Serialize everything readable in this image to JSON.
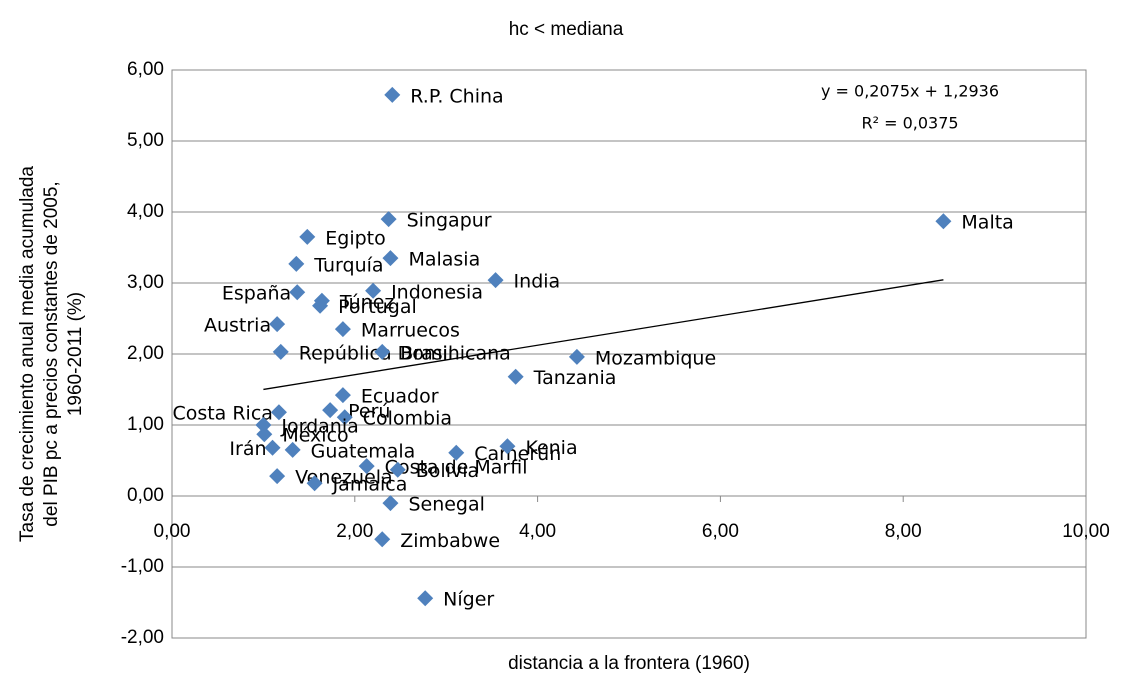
{
  "chart_data": {
    "type": "scatter",
    "title": "hc < mediana",
    "x_label": "distancia a la frontera (1960)",
    "y_label": [
      "Tasa de crecimiento anual media acumulada",
      "del PIB pc a precios constantes de 2005,",
      "1960-2011 (%)"
    ],
    "xlim": [
      0,
      10
    ],
    "ylim": [
      -2,
      6
    ],
    "xticks": [
      {
        "value": 0,
        "label": "0,00"
      },
      {
        "value": 2,
        "label": "2,00"
      },
      {
        "value": 4,
        "label": "4,00"
      },
      {
        "value": 6,
        "label": "6,00"
      },
      {
        "value": 8,
        "label": "8,00"
      },
      {
        "value": 10,
        "label": "10,00"
      }
    ],
    "yticks": [
      {
        "value": -2,
        "label": "-2,00"
      },
      {
        "value": -1,
        "label": "-1,00"
      },
      {
        "value": 0,
        "label": "0,00"
      },
      {
        "value": 1,
        "label": "1,00"
      },
      {
        "value": 2,
        "label": "2,00"
      },
      {
        "value": 3,
        "label": "3,00"
      },
      {
        "value": 4,
        "label": "4,00"
      },
      {
        "value": 5,
        "label": "5,00"
      },
      {
        "value": 6,
        "label": "6,00"
      }
    ],
    "grid": true,
    "color": "#4f81bd",
    "labels": [
      "R.P. China",
      "Singapur",
      "Malta",
      "Egipto",
      "Malasia",
      "Turquía",
      "India",
      "España",
      "Indonesia",
      "Túnez",
      "Portugal",
      "Austria",
      "Marruecos",
      "República Dominicana",
      "Brasil",
      "Mozambique",
      "Tanzania",
      "Ecuador",
      "Costa Rica",
      "Perú",
      "Colombia",
      "Jordania",
      "México",
      "Irán",
      "Guatemala",
      "Costa de Marfil",
      "Bolivia",
      "Camerún",
      "Kenia",
      "Venezuela",
      "Jamaica",
      "Senegal",
      "Zimbabwe",
      "Níger"
    ],
    "x": [
      2.41,
      2.37,
      8.44,
      1.48,
      2.39,
      1.36,
      3.54,
      1.37,
      2.2,
      1.64,
      1.62,
      1.15,
      1.87,
      1.19,
      2.3,
      4.43,
      3.76,
      1.87,
      1.17,
      1.73,
      1.89,
      1.0,
      1.01,
      1.1,
      1.32,
      2.13,
      2.47,
      3.11,
      3.67,
      1.15,
      1.56,
      2.39,
      2.3,
      2.77
    ],
    "values": [
      5.65,
      3.9,
      3.87,
      3.65,
      3.35,
      3.27,
      3.04,
      2.87,
      2.89,
      2.75,
      2.68,
      2.42,
      2.35,
      2.03,
      2.03,
      1.96,
      1.68,
      1.42,
      1.18,
      1.21,
      1.11,
      1.0,
      0.87,
      0.68,
      0.65,
      0.42,
      0.37,
      0.61,
      0.7,
      0.28,
      0.18,
      -0.1,
      -0.61,
      -1.44
    ],
    "trendline": {
      "slope": 0.2075,
      "intercept": 1.2936,
      "equation": "y = 0,2075x + 1,2936",
      "r2": "R² = 0,0375"
    }
  }
}
